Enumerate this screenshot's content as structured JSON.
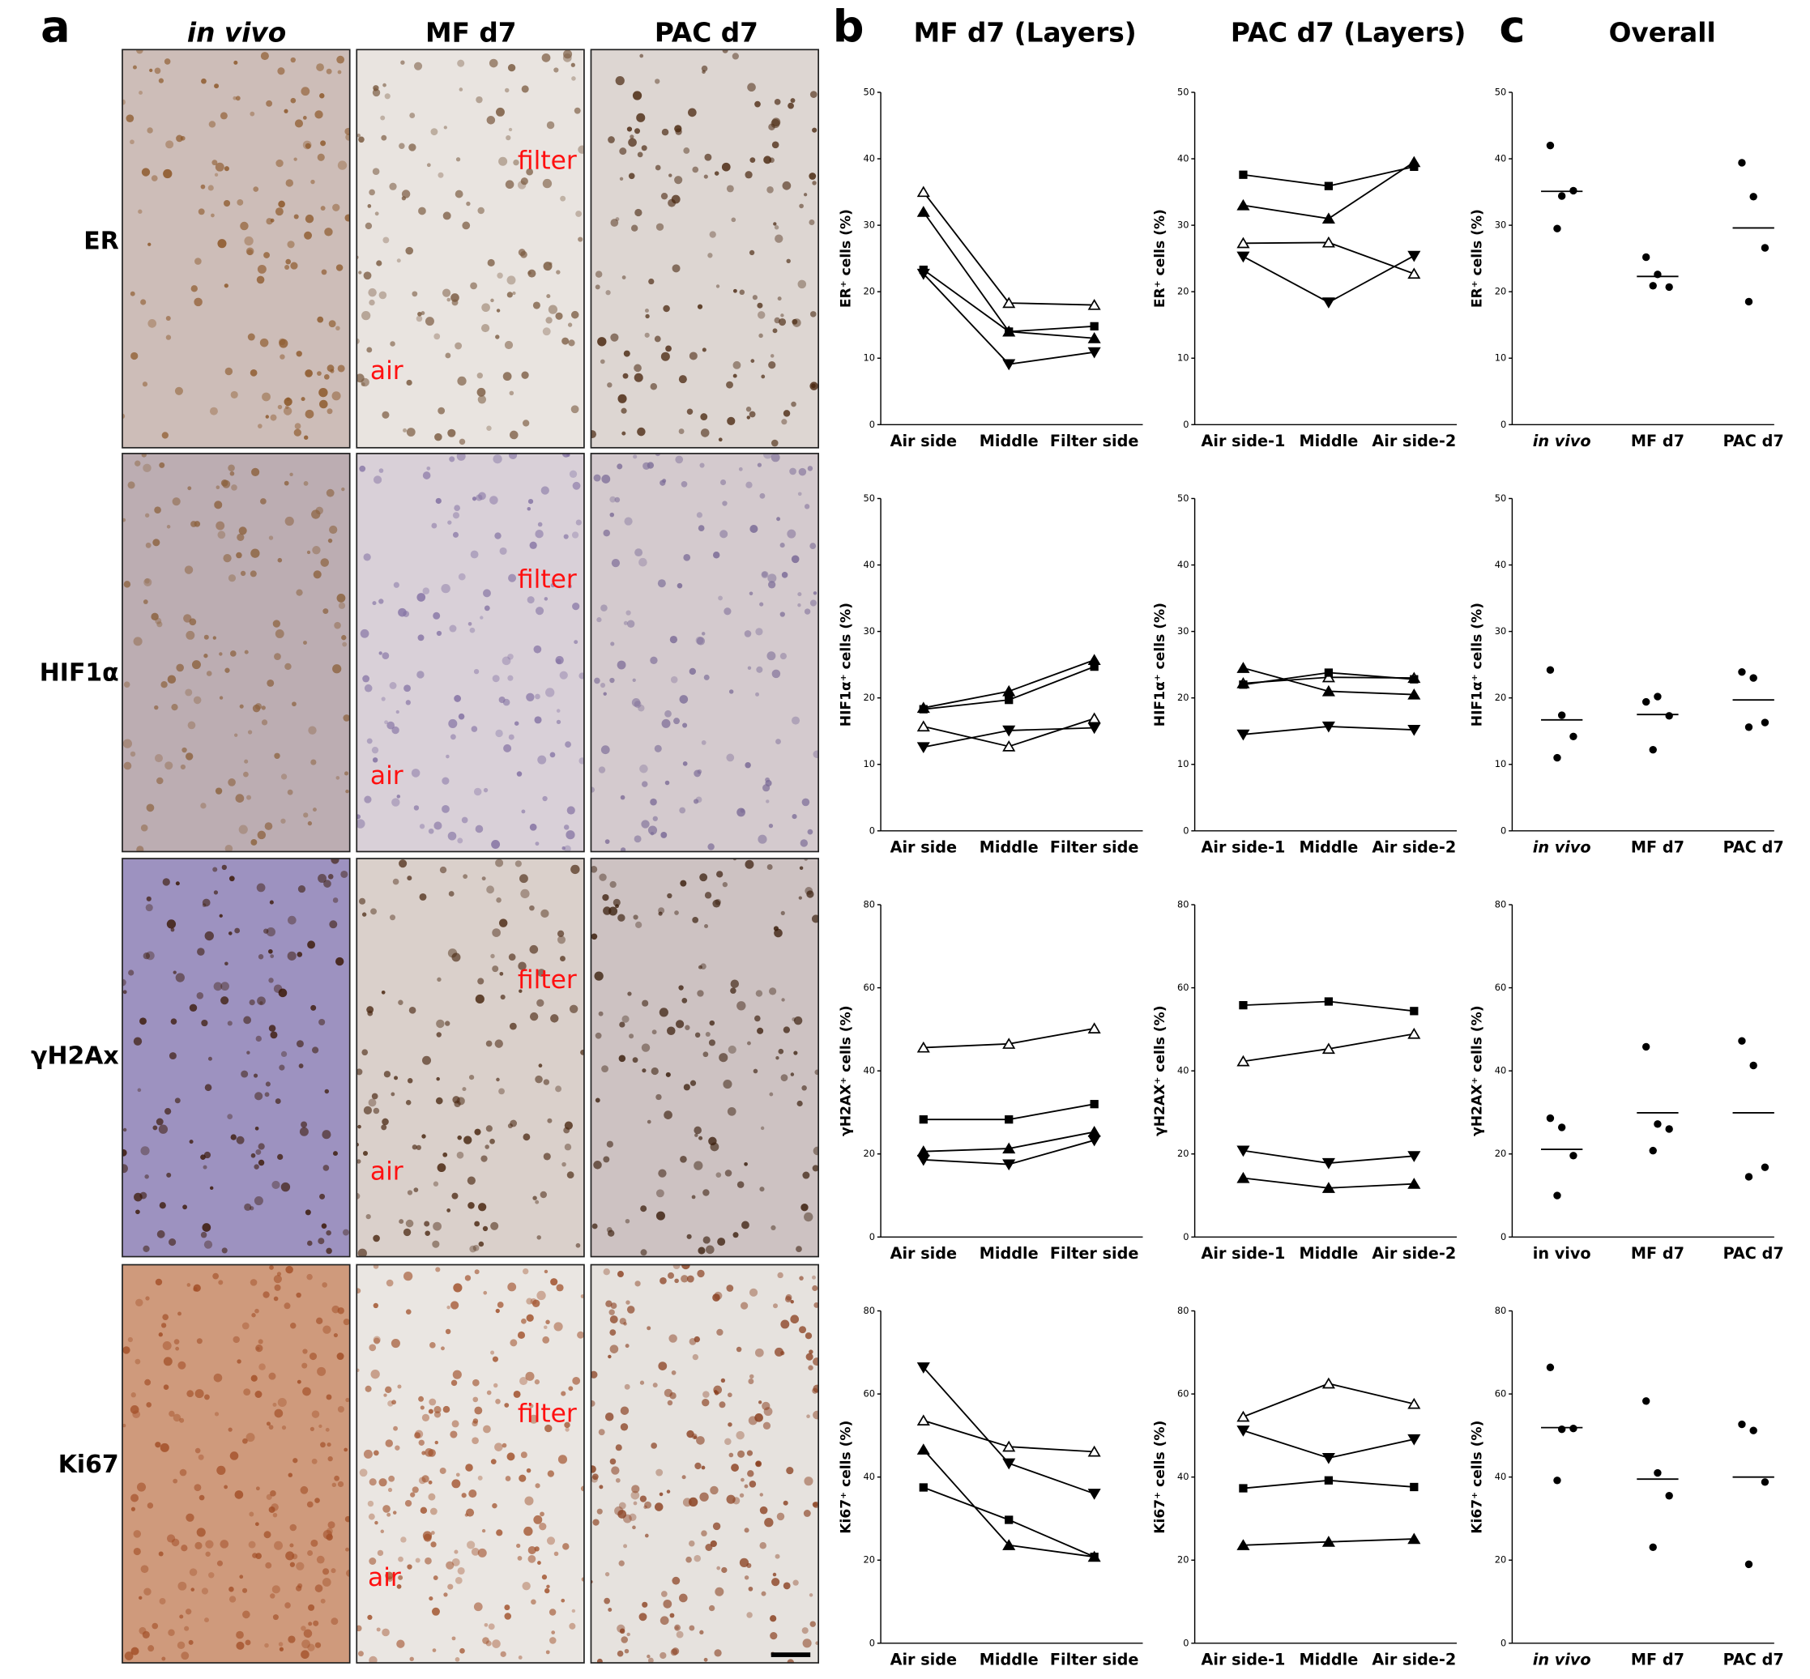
{
  "panels": {
    "letters": [
      "a",
      "b",
      "c"
    ],
    "image_columns": [
      "in vivo",
      "MF d7",
      "PAC d7"
    ],
    "chart_columns": [
      "MF d7 (Layers)",
      "PAC d7 (Layers)",
      "Overall"
    ],
    "rows": [
      "ER",
      "HIF1α",
      "γH2Ax",
      "Ki67"
    ],
    "overlays": [
      [
        "filter",
        "air"
      ],
      [
        "filter",
        "air"
      ],
      [
        "filter",
        "air"
      ],
      [
        "filter",
        "air"
      ]
    ]
  },
  "chart_data": [
    {
      "type": "line",
      "ylabel": "ER⁺ cells (%)",
      "categories": [
        "Air side",
        "Middle",
        "Filter side"
      ],
      "ylim": [
        0,
        50
      ],
      "yticks": [
        0,
        10,
        20,
        30,
        40,
        50
      ],
      "color": "#000000",
      "series": [
        {
          "marker": "triangle-open",
          "values": [
            35,
            18.3,
            18
          ]
        },
        {
          "marker": "triangle",
          "values": [
            32,
            14,
            13
          ]
        },
        {
          "marker": "square",
          "values": [
            23.3,
            14,
            14.8
          ]
        },
        {
          "marker": "triangle-down",
          "values": [
            22.7,
            9.1,
            10.9
          ]
        }
      ]
    },
    {
      "type": "line",
      "ylabel": "ER⁺ cells (%)",
      "categories": [
        "Air side-1",
        "Middle",
        "Air side-2"
      ],
      "ylim": [
        0,
        50
      ],
      "yticks": [
        0,
        10,
        20,
        30,
        40,
        50
      ],
      "color": "#000000",
      "series": [
        {
          "marker": "square",
          "values": [
            37.6,
            35.9,
            38.8
          ]
        },
        {
          "marker": "triangle",
          "values": [
            33,
            31,
            39.5
          ]
        },
        {
          "marker": "triangle-open",
          "values": [
            27.3,
            27.4,
            22.7
          ]
        },
        {
          "marker": "triangle-down",
          "values": [
            25.3,
            18.4,
            25.4
          ]
        }
      ]
    },
    {
      "type": "dotplot",
      "ylabel": "ER⁺ cells (%)",
      "categories": [
        "in vivo",
        "MF d7",
        "PAC d7"
      ],
      "italic_categories": [
        0
      ],
      "ylim": [
        0,
        50
      ],
      "yticks": [
        0,
        10,
        20,
        30,
        40,
        50
      ],
      "color": "#000000",
      "points": [
        [
          42,
          34.4,
          35.2,
          29.5
        ],
        [
          25.2,
          22.6,
          20.7,
          20.9
        ],
        [
          39.4,
          34.3,
          26.6,
          18.5
        ]
      ],
      "means": [
        35.1,
        22.3,
        29.6
      ]
    },
    {
      "type": "line",
      "ylabel": "HIF1α⁺ cells (%)",
      "categories": [
        "Air side",
        "Middle",
        "Filter side"
      ],
      "ylim": [
        0,
        50
      ],
      "yticks": [
        0,
        10,
        20,
        30,
        40,
        50
      ],
      "color": "#000000",
      "series": [
        {
          "marker": "triangle",
          "values": [
            18.5,
            21,
            25.7
          ]
        },
        {
          "marker": "square",
          "values": [
            18.3,
            19.7,
            24.7
          ]
        },
        {
          "marker": "triangle-open",
          "values": [
            15.7,
            12.7,
            16.9
          ]
        },
        {
          "marker": "triangle-down",
          "values": [
            12.6,
            15.1,
            15.5
          ]
        }
      ]
    },
    {
      "type": "line",
      "ylabel": "HIF1α⁺ cells (%)",
      "categories": [
        "Air side-1",
        "Middle",
        "Air side-2"
      ],
      "ylim": [
        0,
        50
      ],
      "yticks": [
        0,
        10,
        20,
        30,
        40,
        50
      ],
      "color": "#000000",
      "series": [
        {
          "marker": "triangle",
          "values": [
            24.5,
            21,
            20.5
          ]
        },
        {
          "marker": "triangle-open",
          "values": [
            22.2,
            23.1,
            23
          ]
        },
        {
          "marker": "square",
          "values": [
            22,
            23.8,
            22.8
          ]
        },
        {
          "marker": "triangle-down",
          "values": [
            14.5,
            15.7,
            15.2
          ]
        }
      ]
    },
    {
      "type": "dotplot",
      "ylabel": "HIF1α⁺ cells (%)",
      "categories": [
        "in vivo",
        "MF d7",
        "PAC d7"
      ],
      "italic_categories": [
        0
      ],
      "ylim": [
        0,
        50
      ],
      "yticks": [
        0,
        10,
        20,
        30,
        40,
        50
      ],
      "color": "#000000",
      "points": [
        [
          24.2,
          17.4,
          14.2,
          11
        ],
        [
          19.4,
          20.2,
          17.3,
          12.2
        ],
        [
          23.9,
          23,
          16.3,
          15.6
        ]
      ],
      "means": [
        16.7,
        17.5,
        19.7
      ]
    },
    {
      "type": "line",
      "ylabel": "γH2AX⁺ cells (%)",
      "categories": [
        "Air side",
        "Middle",
        "Filter side"
      ],
      "ylim": [
        0,
        80
      ],
      "yticks": [
        0,
        20,
        40,
        60,
        80
      ],
      "color": "#000000",
      "series": [
        {
          "marker": "triangle-open",
          "values": [
            45.6,
            46.5,
            50.2
          ]
        },
        {
          "marker": "square",
          "values": [
            28.3,
            28.3,
            32
          ]
        },
        {
          "marker": "triangle",
          "values": [
            20.6,
            21.3,
            25.3
          ]
        },
        {
          "marker": "triangle-down",
          "values": [
            18.6,
            17.5,
            23.3
          ]
        }
      ]
    },
    {
      "type": "line",
      "ylabel": "γH2AX⁺ cells (%)",
      "categories": [
        "Air side-1",
        "Middle",
        "Air side-2"
      ],
      "ylim": [
        0,
        80
      ],
      "yticks": [
        0,
        20,
        40,
        60,
        80
      ],
      "color": "#000000",
      "series": [
        {
          "marker": "square",
          "values": [
            55.8,
            56.7,
            54.4
          ]
        },
        {
          "marker": "triangle-open",
          "values": [
            42.3,
            45.3,
            48.9
          ]
        },
        {
          "marker": "triangle-down",
          "values": [
            20.8,
            17.8,
            19.5
          ]
        },
        {
          "marker": "triangle",
          "values": [
            14.2,
            11.8,
            12.8
          ]
        }
      ]
    },
    {
      "type": "dotplot",
      "ylabel": "γH2AX⁺ cells (%)",
      "categories": [
        "in vivo",
        "MF d7",
        "PAC d7"
      ],
      "italic_categories": [],
      "ylim": [
        0,
        80
      ],
      "yticks": [
        0,
        20,
        40,
        60,
        80
      ],
      "color": "#000000",
      "points": [
        [
          28.6,
          26.4,
          19.6,
          10
        ],
        [
          45.8,
          27.2,
          26,
          20.8
        ],
        [
          47.2,
          41.3,
          16.8,
          14.5
        ]
      ],
      "means": [
        21.1,
        29.9,
        29.9
      ]
    },
    {
      "type": "line",
      "ylabel": "Ki67⁺ cells (%)",
      "categories": [
        "Air side",
        "Middle",
        "Filter side"
      ],
      "ylim": [
        0,
        80
      ],
      "yticks": [
        0,
        20,
        40,
        60,
        80
      ],
      "color": "#000000",
      "series": [
        {
          "marker": "triangle-down",
          "values": [
            66.4,
            43.3,
            36
          ]
        },
        {
          "marker": "triangle-open",
          "values": [
            53.6,
            47.3,
            46.1
          ]
        },
        {
          "marker": "triangle",
          "values": [
            46.6,
            23.6,
            20.8
          ]
        },
        {
          "marker": "square",
          "values": [
            37.5,
            29.7,
            20.8
          ]
        }
      ]
    },
    {
      "type": "line",
      "ylabel": "Ki67⁺ cells (%)",
      "categories": [
        "Air side-1",
        "Middle",
        "Air side-2"
      ],
      "ylim": [
        0,
        80
      ],
      "yticks": [
        0,
        20,
        40,
        60,
        80
      ],
      "color": "#000000",
      "series": [
        {
          "marker": "triangle-open",
          "values": [
            54.5,
            62.5,
            57.6
          ]
        },
        {
          "marker": "triangle-down",
          "values": [
            51.2,
            44.6,
            49.1
          ]
        },
        {
          "marker": "square",
          "values": [
            37.3,
            39.2,
            37.6
          ]
        },
        {
          "marker": "triangle",
          "values": [
            23.6,
            24.4,
            25.1
          ]
        }
      ]
    },
    {
      "type": "dotplot",
      "ylabel": "Ki67⁺ cells (%)",
      "categories": [
        "in vivo",
        "MF d7",
        "PAC d7"
      ],
      "italic_categories": [
        0
      ],
      "ylim": [
        0,
        80
      ],
      "yticks": [
        0,
        20,
        40,
        60,
        80
      ],
      "color": "#000000",
      "points": [
        [
          66.4,
          51.5,
          51.7,
          39.2
        ],
        [
          58.3,
          41,
          35.5,
          23.1
        ],
        [
          52.7,
          51.2,
          38.8,
          19
        ]
      ],
      "means": [
        51.9,
        39.5,
        40
      ]
    }
  ]
}
